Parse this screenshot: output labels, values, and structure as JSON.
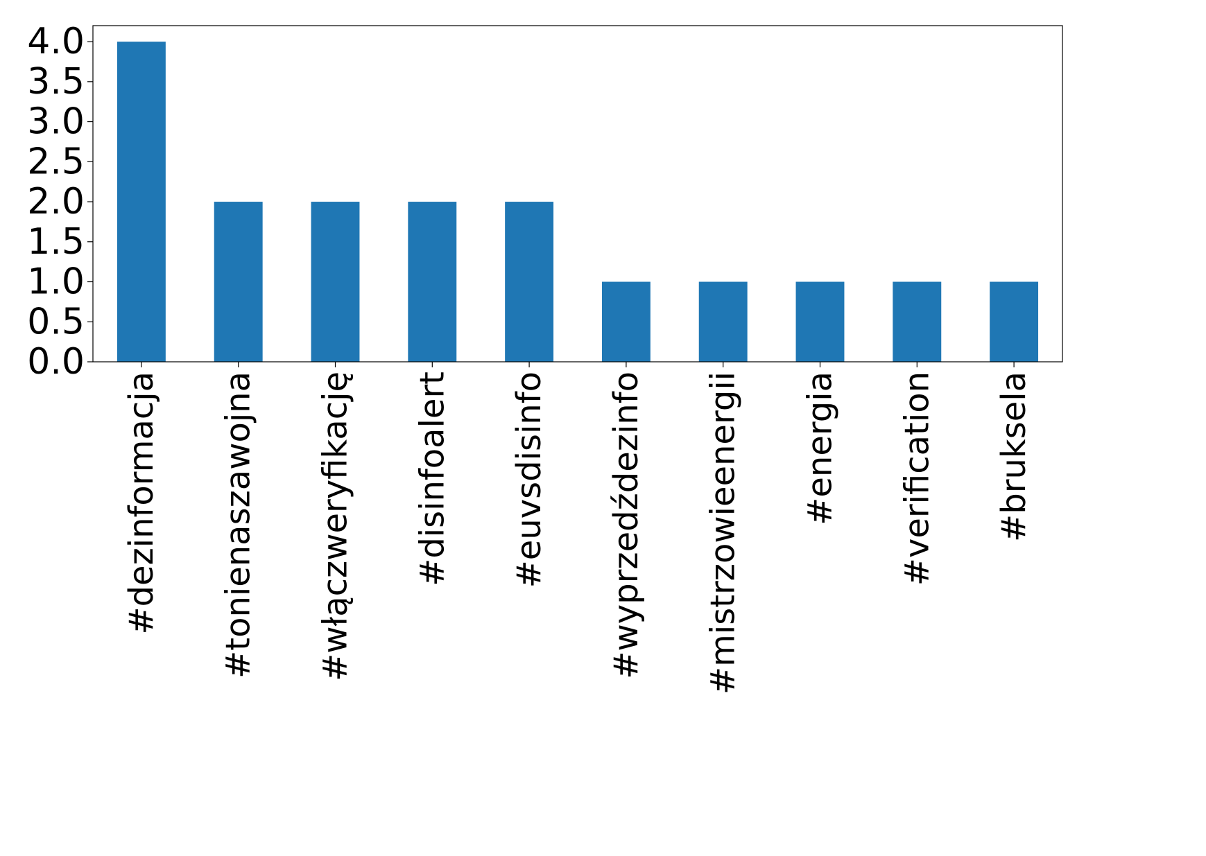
{
  "chart_data": {
    "type": "bar",
    "categories": [
      "#dezinformacja",
      "#tonienaszawojna",
      "#włączweryfikację",
      "#disinfoalert",
      "#euvsdisinfo",
      "#wyprzedźdezinfo",
      "#mistrzowieenergii",
      "#energia",
      "#verification",
      "#bruksela"
    ],
    "values": [
      4,
      2,
      2,
      2,
      2,
      1,
      1,
      1,
      1,
      1
    ],
    "title": "",
    "xlabel": "",
    "ylabel": "",
    "ylim": [
      0,
      4.2
    ],
    "yticks": [
      "0.0",
      "0.5",
      "1.0",
      "1.5",
      "2.0",
      "2.5",
      "3.0",
      "3.5",
      "4.0"
    ],
    "grid": false,
    "legend": "none",
    "bar_color": "#1f77b4"
  }
}
